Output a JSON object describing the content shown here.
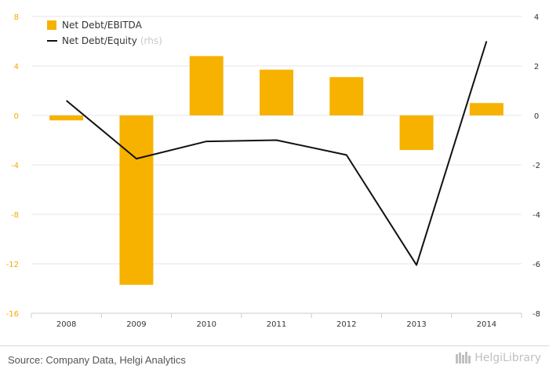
{
  "chart_data": {
    "type": "bar",
    "categories": [
      "2008",
      "2009",
      "2010",
      "2011",
      "2012",
      "2013",
      "2014"
    ],
    "series": [
      {
        "name": "Net Debt/EBITDA",
        "type": "bar",
        "axis": "left",
        "color": "#f7b200",
        "values": [
          -0.4,
          -13.7,
          4.8,
          3.7,
          3.1,
          -2.8,
          1.0
        ]
      },
      {
        "name": "Net Debt/Equity",
        "type": "line",
        "axis": "right",
        "color": "#111111",
        "values": [
          0.6,
          -1.75,
          -1.05,
          -1.0,
          -1.6,
          -6.05,
          3.0
        ]
      }
    ],
    "left_axis": {
      "min": -16,
      "max": 8,
      "ticks": [
        "8",
        "4",
        "0",
        "-4",
        "-8",
        "-12",
        "-16"
      ],
      "color": "#f7a800"
    },
    "right_axis": {
      "min": -8,
      "max": 4,
      "ticks": [
        "4",
        "2",
        "0",
        "-2",
        "-4",
        "-6",
        "-8"
      ]
    },
    "rhs_note": "(rhs)",
    "grid": true,
    "legend_position": "top-left"
  },
  "footer": {
    "source": "Source: Company Data, Helgi Analytics",
    "logo_text": "HelgiLibrary"
  }
}
